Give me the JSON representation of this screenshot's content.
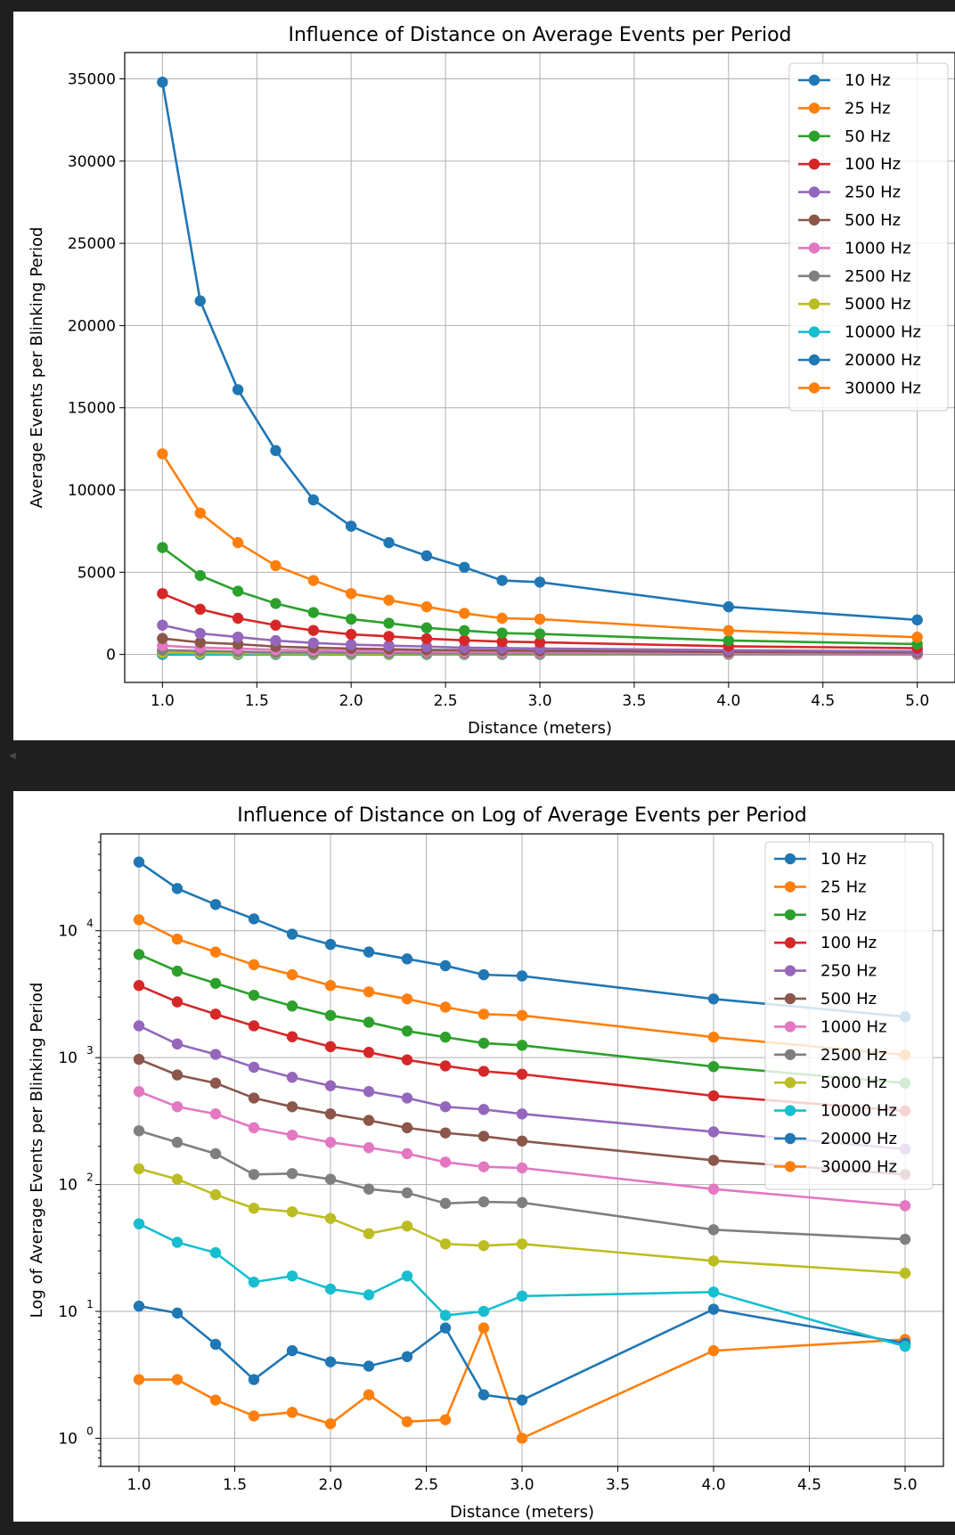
{
  "chart_data": [
    {
      "type": "line",
      "title": "Influence of Distance on Average Events per Period",
      "xlabel": "Distance (meters)",
      "ylabel": "Average Events per Blinking Period",
      "yscale": "linear",
      "xlim": [
        0.8,
        5.2
      ],
      "ylim": [
        -1700,
        36600
      ],
      "x_ticks": [
        "1.0",
        "1.5",
        "2.0",
        "2.5",
        "3.0",
        "3.5",
        "4.0",
        "4.5",
        "5.0"
      ],
      "y_ticks": [
        "0",
        "5000",
        "10000",
        "15000",
        "20000",
        "25000",
        "30000",
        "35000"
      ],
      "grid": true,
      "legend_position": "upper right",
      "x": [
        1.0,
        1.2,
        1.4,
        1.6,
        1.8,
        2.0,
        2.2,
        2.4,
        2.6,
        2.8,
        3.0,
        4.0,
        5.0
      ],
      "series": [
        {
          "name": "10 Hz",
          "color": "#1f77b4",
          "values": [
            34800,
            21500,
            16100,
            12400,
            9400,
            7800,
            6800,
            6000,
            5300,
            4500,
            4400,
            2900,
            2100
          ]
        },
        {
          "name": "25 Hz",
          "color": "#ff7f0e",
          "values": [
            12200,
            8600,
            6800,
            5400,
            4500,
            3700,
            3300,
            2900,
            2500,
            2200,
            2150,
            1450,
            1050
          ]
        },
        {
          "name": "50 Hz",
          "color": "#2ca02c",
          "values": [
            6500,
            4800,
            3850,
            3100,
            2550,
            2150,
            1900,
            1620,
            1450,
            1300,
            1250,
            850,
            630
          ]
        },
        {
          "name": "100 Hz",
          "color": "#d62728",
          "values": [
            3700,
            2750,
            2200,
            1780,
            1460,
            1220,
            1100,
            960,
            860,
            780,
            740,
            500,
            380
          ]
        },
        {
          "name": "250 Hz",
          "color": "#9467bd",
          "values": [
            1780,
            1280,
            1060,
            840,
            700,
            600,
            540,
            480,
            410,
            390,
            360,
            260,
            190
          ]
        },
        {
          "name": "500 Hz",
          "color": "#8c564b",
          "values": [
            970,
            730,
            630,
            480,
            410,
            360,
            320,
            280,
            255,
            240,
            220,
            155,
            120
          ]
        },
        {
          "name": "1000 Hz",
          "color": "#e377c2",
          "values": [
            540,
            410,
            360,
            280,
            245,
            215,
            195,
            175,
            150,
            138,
            135,
            92,
            68
          ]
        },
        {
          "name": "2500 Hz",
          "color": "#7f7f7f",
          "values": [
            265,
            215,
            175,
            120,
            122,
            110,
            92,
            86,
            71,
            73,
            72,
            44,
            37
          ]
        },
        {
          "name": "5000 Hz",
          "color": "#bcbd22",
          "values": [
            133,
            110,
            83,
            65,
            61,
            54,
            41,
            47,
            34,
            33,
            34,
            25,
            20
          ]
        },
        {
          "name": "10000 Hz",
          "color": "#17becf",
          "values": [
            49,
            35,
            29,
            17,
            19,
            15,
            13.5,
            19,
            9.3,
            10,
            13.2,
            14.2,
            5.3
          ]
        },
        {
          "name": "20000 Hz",
          "color": "#1f77b4",
          "values": [
            11,
            9.7,
            5.5,
            2.9,
            4.9,
            4,
            3.7,
            4.4,
            7.4,
            2.2,
            2.0,
            10.4,
            5.6
          ]
        },
        {
          "name": "30000 Hz",
          "color": "#ff7f0e",
          "values": [
            2.9,
            2.9,
            2.0,
            1.5,
            1.6,
            1.3,
            2.2,
            1.35,
            1.4,
            7.4,
            1.0,
            4.9,
            6.0
          ]
        }
      ]
    },
    {
      "type": "line",
      "title": "Influence of Distance on Log of Average Events per Period",
      "xlabel": "Distance (meters)",
      "ylabel": "Log of Average Events per Blinking Period",
      "yscale": "log",
      "xlim": [
        0.8,
        5.2
      ],
      "ylim": [
        0.6,
        58000
      ],
      "x_ticks": [
        "1.0",
        "1.5",
        "2.0",
        "2.5",
        "3.0",
        "3.5",
        "4.0",
        "4.5",
        "5.0"
      ],
      "y_ticks": [
        {
          "base": "10",
          "exp": "0",
          "value": 1
        },
        {
          "base": "10",
          "exp": "1",
          "value": 10
        },
        {
          "base": "10",
          "exp": "2",
          "value": 100
        },
        {
          "base": "10",
          "exp": "3",
          "value": 1000
        },
        {
          "base": "10",
          "exp": "4",
          "value": 10000
        }
      ],
      "grid": true,
      "legend_position": "upper right",
      "x": [
        1.0,
        1.2,
        1.4,
        1.6,
        1.8,
        2.0,
        2.2,
        2.4,
        2.6,
        2.8,
        3.0,
        4.0,
        5.0
      ],
      "series": [
        {
          "name": "10 Hz",
          "color": "#1f77b4",
          "values": [
            34800,
            21500,
            16100,
            12400,
            9400,
            7800,
            6800,
            6000,
            5300,
            4500,
            4400,
            2900,
            2100
          ]
        },
        {
          "name": "25 Hz",
          "color": "#ff7f0e",
          "values": [
            12200,
            8600,
            6800,
            5400,
            4500,
            3700,
            3300,
            2900,
            2500,
            2200,
            2150,
            1450,
            1050
          ]
        },
        {
          "name": "50 Hz",
          "color": "#2ca02c",
          "values": [
            6500,
            4800,
            3850,
            3100,
            2550,
            2150,
            1900,
            1620,
            1450,
            1300,
            1250,
            850,
            630
          ]
        },
        {
          "name": "100 Hz",
          "color": "#d62728",
          "values": [
            3700,
            2750,
            2200,
            1780,
            1460,
            1220,
            1100,
            960,
            860,
            780,
            740,
            500,
            380
          ]
        },
        {
          "name": "250 Hz",
          "color": "#9467bd",
          "values": [
            1780,
            1280,
            1060,
            840,
            700,
            600,
            540,
            480,
            410,
            390,
            360,
            260,
            190
          ]
        },
        {
          "name": "500 Hz",
          "color": "#8c564b",
          "values": [
            970,
            730,
            630,
            480,
            410,
            360,
            320,
            280,
            255,
            240,
            220,
            155,
            120
          ]
        },
        {
          "name": "1000 Hz",
          "color": "#e377c2",
          "values": [
            540,
            410,
            360,
            280,
            245,
            215,
            195,
            175,
            150,
            138,
            135,
            92,
            68
          ]
        },
        {
          "name": "2500 Hz",
          "color": "#7f7f7f",
          "values": [
            265,
            215,
            175,
            120,
            122,
            110,
            92,
            86,
            71,
            73,
            72,
            44,
            37
          ]
        },
        {
          "name": "5000 Hz",
          "color": "#bcbd22",
          "values": [
            133,
            110,
            83,
            65,
            61,
            54,
            41,
            47,
            34,
            33,
            34,
            25,
            20
          ]
        },
        {
          "name": "10000 Hz",
          "color": "#17becf",
          "values": [
            49,
            35,
            29,
            17,
            19,
            15,
            13.5,
            19,
            9.3,
            10,
            13.2,
            14.2,
            5.3
          ]
        },
        {
          "name": "20000 Hz",
          "color": "#1f77b4",
          "values": [
            11,
            9.7,
            5.5,
            2.9,
            4.9,
            4,
            3.7,
            4.4,
            7.4,
            2.2,
            2.0,
            10.4,
            5.6
          ]
        },
        {
          "name": "30000 Hz",
          "color": "#ff7f0e",
          "values": [
            2.9,
            2.9,
            2.0,
            1.5,
            1.6,
            1.3,
            2.2,
            1.35,
            1.4,
            7.4,
            1.0,
            4.9,
            6.0
          ]
        }
      ]
    }
  ]
}
